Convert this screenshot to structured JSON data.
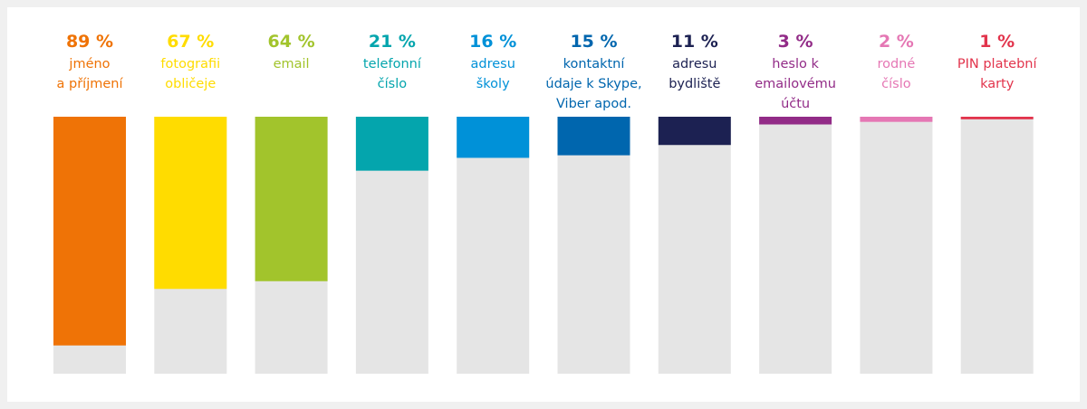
{
  "chart_data": {
    "type": "bar",
    "title": "",
    "xlabel": "",
    "ylabel": "",
    "ylim": [
      0,
      100
    ],
    "grid": false,
    "legend": "none",
    "track_color": "#e5e5e5",
    "categories": [
      {
        "lines": [
          "jméno",
          "a příjmení"
        ]
      },
      {
        "lines": [
          "fotografii",
          "obličeje"
        ]
      },
      {
        "lines": [
          "email"
        ]
      },
      {
        "lines": [
          "telefonní",
          "číslo"
        ]
      },
      {
        "lines": [
          "adresu",
          "školy"
        ]
      },
      {
        "lines": [
          "kontaktní",
          "údaje k Skype,",
          "Viber apod."
        ]
      },
      {
        "lines": [
          "adresu",
          "bydliště"
        ]
      },
      {
        "lines": [
          "heslo k",
          "emailovému",
          "účtu"
        ]
      },
      {
        "lines": [
          "rodné",
          "číslo"
        ]
      },
      {
        "lines": [
          "PIN platební",
          "karty"
        ]
      }
    ],
    "values": [
      89,
      67,
      64,
      21,
      16,
      15,
      11,
      3,
      2,
      1
    ],
    "value_labels": [
      "89 %",
      "67 %",
      "64 %",
      "21 %",
      "16 %",
      "15 %",
      "11 %",
      "3 %",
      "2 %",
      "1 %"
    ],
    "colors": [
      "#ef7306",
      "#ffdc00",
      "#a2c42c",
      "#04a5ad",
      "#0091d8",
      "#0066ae",
      "#1c2152",
      "#922b87",
      "#e577b4",
      "#e2344c"
    ]
  }
}
